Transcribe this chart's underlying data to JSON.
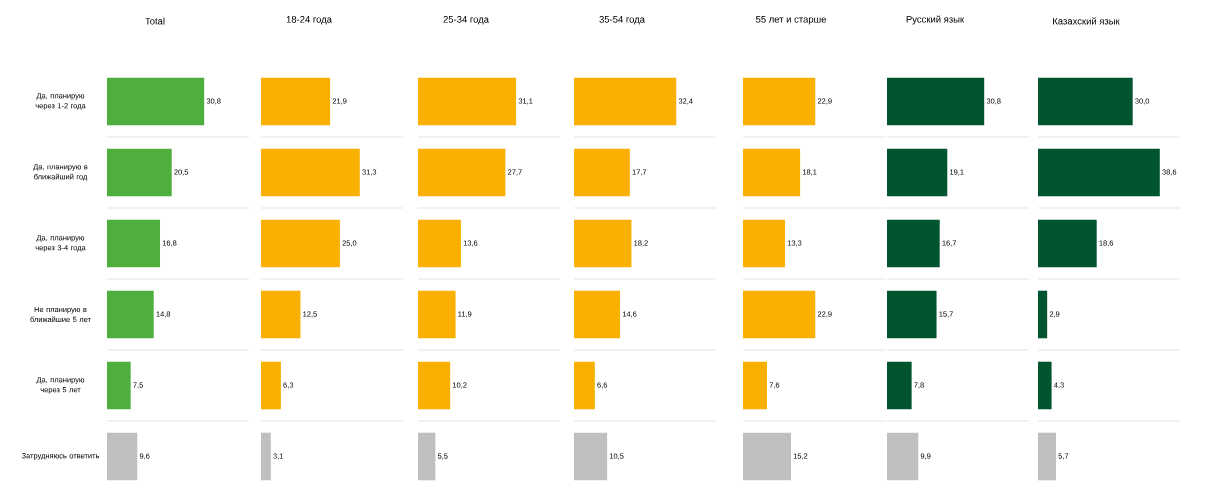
{
  "chart_data": [
    {
      "type": "bar",
      "orientation": "horizontal",
      "title": "Total",
      "categories": [
        "Да, планирую через 1-2 года",
        "Да, планирую в ближайший год",
        "Да, планирую через 3-4 года",
        "Не планирую в ближайшие 5 лет",
        "Да, планирую через 5 лет",
        "Затрудняюсь ответить"
      ],
      "values": [
        30.8,
        20.5,
        16.8,
        14.8,
        7.5,
        9.6
      ],
      "value_labels": [
        "30,8",
        "20,5",
        "16,8",
        "14,8",
        "7,5",
        "9,6"
      ],
      "colors": [
        "#4eae3e",
        "#4eae3e",
        "#4eae3e",
        "#4eae3e",
        "#4eae3e",
        "#bfbfbf"
      ],
      "xlim": [
        0,
        45
      ],
      "grid": "y"
    },
    {
      "type": "bar",
      "orientation": "horizontal",
      "title": "18-24 года",
      "categories": [
        null,
        null,
        null,
        null,
        null,
        null
      ],
      "values": [
        21.9,
        31.3,
        25.0,
        12.5,
        6.3,
        3.1
      ],
      "value_labels": [
        "21,9",
        "31,3",
        "25,0",
        "12,5",
        "6,3",
        "3,1"
      ],
      "colors": [
        "#f9b000",
        "#f9b000",
        "#f9b000",
        "#f9b000",
        "#f9b000",
        "#bfbfbf"
      ],
      "xlim": [
        0,
        45
      ],
      "grid": "y"
    },
    {
      "type": "bar",
      "orientation": "horizontal",
      "title": "25-34 года",
      "categories": [
        null,
        null,
        null,
        null,
        null,
        null
      ],
      "values": [
        31.1,
        27.7,
        13.6,
        11.9,
        10.2,
        5.5
      ],
      "value_labels": [
        "31,1",
        "27,7",
        "13,6",
        "11,9",
        "10,2",
        "5,5"
      ],
      "colors": [
        "#f9b000",
        "#f9b000",
        "#f9b000",
        "#f9b000",
        "#f9b000",
        "#bfbfbf"
      ],
      "xlim": [
        0,
        45
      ],
      "grid": "y"
    },
    {
      "type": "bar",
      "orientation": "horizontal",
      "title": "35-54 года",
      "categories": [
        null,
        null,
        null,
        null,
        null,
        null
      ],
      "values": [
        32.4,
        17.7,
        18.2,
        14.6,
        6.6,
        10.5
      ],
      "value_labels": [
        "32,4",
        "17,7",
        "18,2",
        "14,6",
        "6,6",
        "10,5"
      ],
      "colors": [
        "#f9b000",
        "#f9b000",
        "#f9b000",
        "#f9b000",
        "#f9b000",
        "#bfbfbf"
      ],
      "xlim": [
        0,
        45
      ],
      "grid": "y"
    },
    {
      "type": "bar",
      "orientation": "horizontal",
      "title": "55 лет и старше",
      "categories": [
        null,
        null,
        null,
        null,
        null,
        null
      ],
      "values": [
        22.9,
        18.1,
        13.3,
        22.9,
        7.6,
        15.2
      ],
      "value_labels": [
        "22,9",
        "18,1",
        "13,3",
        "22,9",
        "7,6",
        "15,2"
      ],
      "colors": [
        "#f9b000",
        "#f9b000",
        "#f9b000",
        "#f9b000",
        "#f9b000",
        "#bfbfbf"
      ],
      "xlim": [
        0,
        45
      ],
      "grid": "y"
    },
    {
      "type": "bar",
      "orientation": "horizontal",
      "title": "Русский язык",
      "categories": [
        null,
        null,
        null,
        null,
        null,
        null
      ],
      "values": [
        30.8,
        19.1,
        16.7,
        15.7,
        7.8,
        9.9
      ],
      "value_labels": [
        "30,8",
        "19,1",
        "16,7",
        "15,7",
        "7,8",
        "9,9"
      ],
      "colors": [
        "#00542e",
        "#00542e",
        "#00542e",
        "#00542e",
        "#00542e",
        "#bfbfbf"
      ],
      "xlim": [
        0,
        45
      ],
      "grid": "y"
    },
    {
      "type": "bar",
      "orientation": "horizontal",
      "title": "Казахский язык",
      "categories": [
        null,
        null,
        null,
        null,
        null,
        null
      ],
      "values": [
        30.0,
        38.6,
        18.6,
        2.9,
        4.3,
        5.7
      ],
      "value_labels": [
        "30,0",
        "38,6",
        "18,6",
        "2,9",
        "4,3",
        "5,7"
      ],
      "colors": [
        "#00542e",
        "#00542e",
        "#00542e",
        "#00542e",
        "#00542e",
        "#bfbfbf"
      ],
      "xlim": [
        0,
        45
      ],
      "grid": "y"
    }
  ]
}
